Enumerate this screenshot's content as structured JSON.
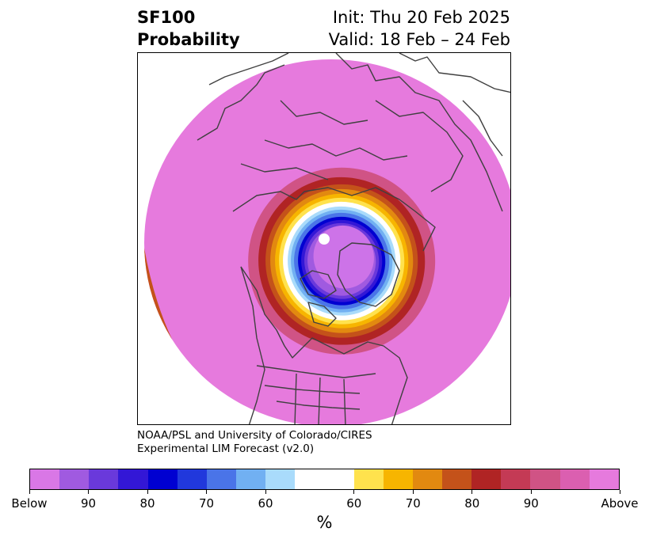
{
  "header": {
    "variable": "SF100",
    "kind": "Probability",
    "init": "Init: Thu 20 Feb 2025",
    "valid": "Valid: 18 Feb – 24 Feb"
  },
  "credit": {
    "line1": "NOAA/PSL and University of Colorado/CIRES",
    "line2": "Experimental LIM Forecast (v2.0)"
  },
  "colorbar": {
    "colors": [
      "#d977e6",
      "#a05ae0",
      "#6a39db",
      "#3317d6",
      "#0000d1",
      "#2138dc",
      "#4a74e8",
      "#71b0f2",
      "#a9dbfb",
      "#ffffff",
      "#ffe24d",
      "#f7b500",
      "#e28910",
      "#c4521a",
      "#b02424",
      "#c43a55",
      "#d05385",
      "#db5fb0",
      "#e67add"
    ],
    "tick_labels": [
      "Below",
      "90",
      "80",
      "70",
      "60",
      "60",
      "70",
      "80",
      "90",
      "Above"
    ],
    "unit": "%"
  },
  "map": {
    "projection": "north polar stereographic",
    "field_colors": {
      "above_90": "#e67add",
      "below_90": "#cd73e8"
    }
  }
}
